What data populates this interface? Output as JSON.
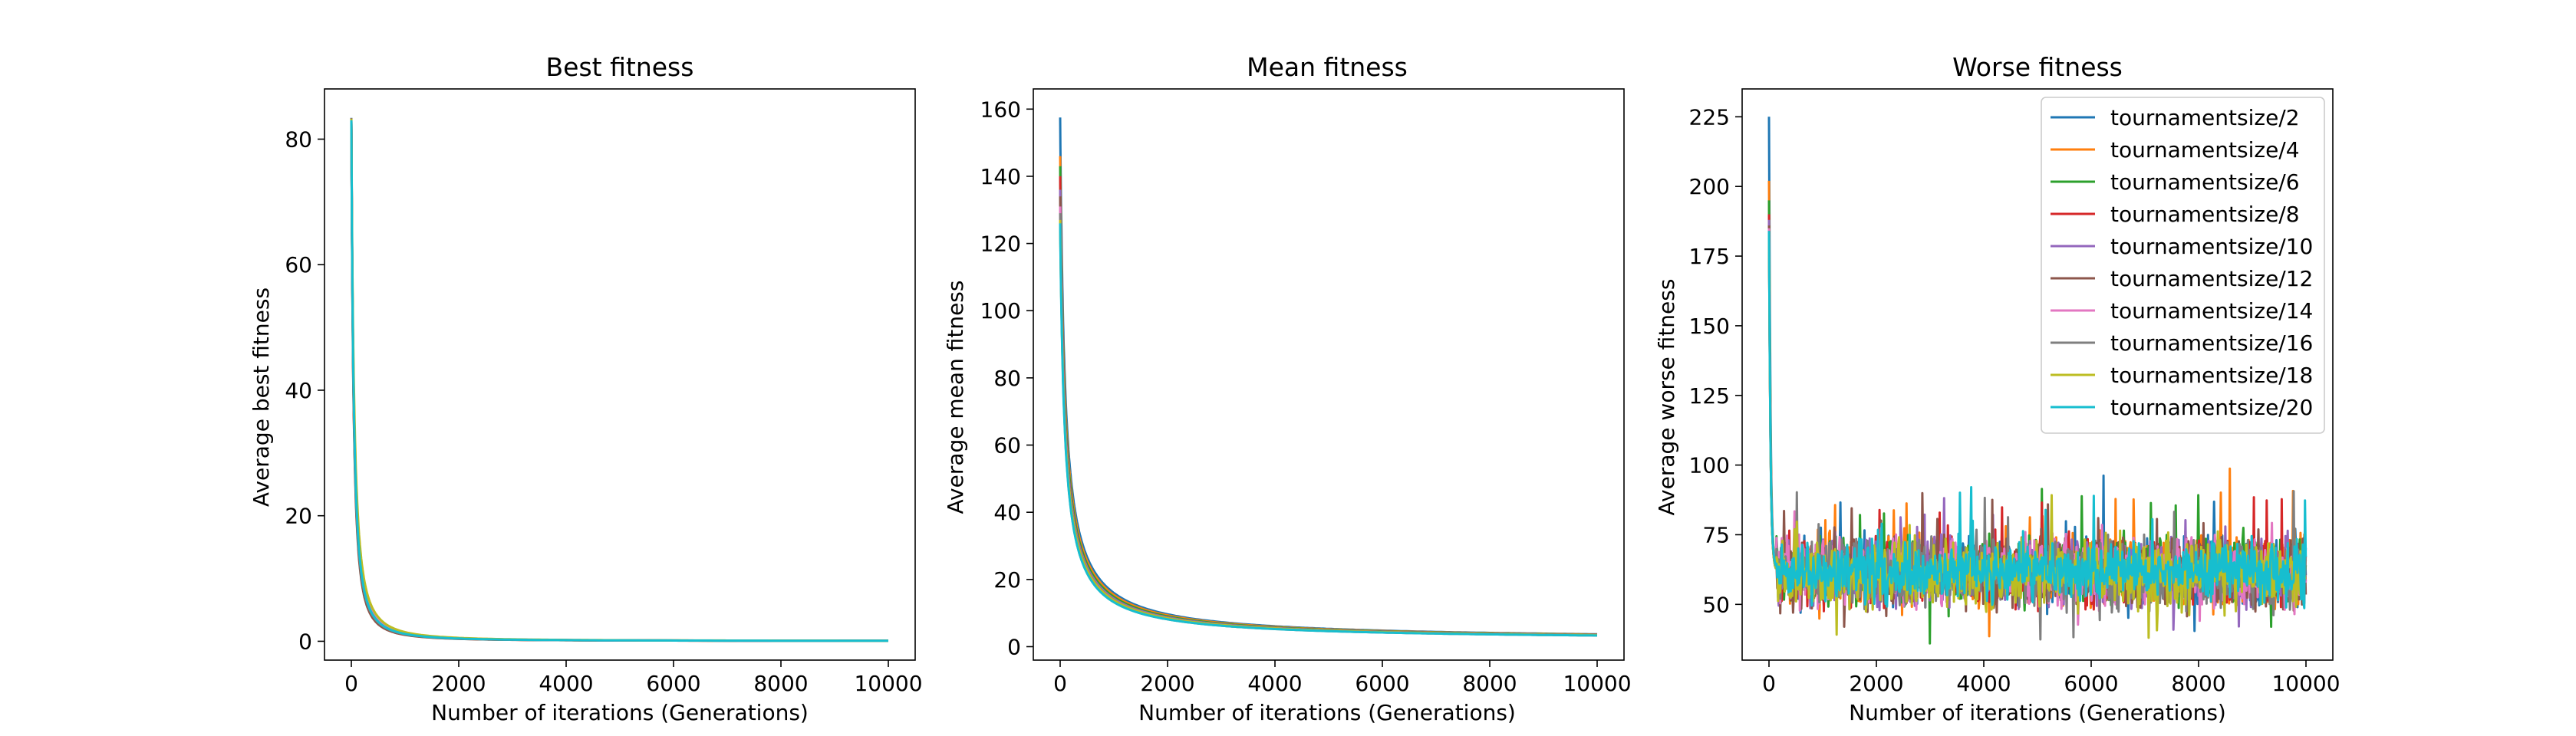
{
  "figure": {
    "colors": [
      "#1f77b4",
      "#ff7f0e",
      "#2ca02c",
      "#d62728",
      "#9467bd",
      "#8c564b",
      "#e377c2",
      "#7f7f7f",
      "#bcbd22",
      "#17becf"
    ]
  },
  "legend": {
    "placement": "upper-right of third panel",
    "entries": [
      "tournamentsize/2",
      "tournamentsize/4",
      "tournamentsize/6",
      "tournamentsize/8",
      "tournamentsize/10",
      "tournamentsize/12",
      "tournamentsize/14",
      "tournamentsize/16",
      "tournamentsize/18",
      "tournamentsize/20"
    ]
  },
  "chart_data": [
    {
      "type": "line",
      "title": "Best fitness",
      "xlabel": "Number of iterations (Generations)",
      "ylabel": "Average best fitness",
      "xlim": [
        -500,
        10500
      ],
      "ylim": [
        -3,
        88
      ],
      "xticks": [
        0,
        2000,
        4000,
        6000,
        8000,
        10000
      ],
      "yticks": [
        0,
        20,
        40,
        60,
        80
      ],
      "grid": false,
      "series": [
        {
          "name": "tournamentsize/2",
          "start": 83.4,
          "k": 75,
          "p": 1.6,
          "floor": 0.05,
          "noise": 0
        },
        {
          "name": "tournamentsize/4",
          "start": 83.3,
          "k": 70,
          "p": 1.6,
          "floor": 0.05,
          "noise": 0
        },
        {
          "name": "tournamentsize/6",
          "start": 83.2,
          "k": 72,
          "p": 1.6,
          "floor": 0.05,
          "noise": 0
        },
        {
          "name": "tournamentsize/8",
          "start": 83.0,
          "k": 68,
          "p": 1.6,
          "floor": 0.05,
          "noise": 0
        },
        {
          "name": "tournamentsize/10",
          "start": 83.1,
          "k": 74,
          "p": 1.6,
          "floor": 0.05,
          "noise": 0
        },
        {
          "name": "tournamentsize/12",
          "start": 82.8,
          "k": 66,
          "p": 1.6,
          "floor": 0.05,
          "noise": 0
        },
        {
          "name": "tournamentsize/14",
          "start": 83.0,
          "k": 78,
          "p": 1.6,
          "floor": 0.05,
          "noise": 0
        },
        {
          "name": "tournamentsize/16",
          "start": 82.9,
          "k": 71,
          "p": 1.6,
          "floor": 0.05,
          "noise": 0
        },
        {
          "name": "tournamentsize/18",
          "start": 83.2,
          "k": 85,
          "p": 1.6,
          "floor": 0.05,
          "noise": 0
        },
        {
          "name": "tournamentsize/20",
          "start": 83.0,
          "k": 73,
          "p": 1.6,
          "floor": 0.05,
          "noise": 0
        }
      ]
    },
    {
      "type": "line",
      "title": "Mean fitness",
      "xlabel": "Number of iterations (Generations)",
      "ylabel": "Average mean fitness",
      "xlim": [
        -500,
        10500
      ],
      "ylim": [
        -4,
        166
      ],
      "xticks": [
        0,
        2000,
        4000,
        6000,
        8000,
        10000
      ],
      "yticks": [
        0,
        20,
        40,
        60,
        80,
        100,
        120,
        140,
        160
      ],
      "grid": false,
      "series": [
        {
          "name": "tournamentsize/2",
          "start": 157.5,
          "k": 75,
          "p": 0.9,
          "floor": 1.8,
          "noise": 0
        },
        {
          "name": "tournamentsize/4",
          "start": 146,
          "k": 78,
          "p": 0.9,
          "floor": 1.8,
          "noise": 0
        },
        {
          "name": "tournamentsize/6",
          "start": 143,
          "k": 76,
          "p": 0.9,
          "floor": 1.8,
          "noise": 0
        },
        {
          "name": "tournamentsize/8",
          "start": 140,
          "k": 74,
          "p": 0.9,
          "floor": 1.8,
          "noise": 0
        },
        {
          "name": "tournamentsize/10",
          "start": 136,
          "k": 77,
          "p": 0.9,
          "floor": 1.8,
          "noise": 0
        },
        {
          "name": "tournamentsize/12",
          "start": 134,
          "k": 75,
          "p": 0.9,
          "floor": 1.8,
          "noise": 0
        },
        {
          "name": "tournamentsize/14",
          "start": 131,
          "k": 76,
          "p": 0.9,
          "floor": 1.8,
          "noise": 0
        },
        {
          "name": "tournamentsize/16",
          "start": 129,
          "k": 74,
          "p": 0.9,
          "floor": 1.8,
          "noise": 0
        },
        {
          "name": "tournamentsize/18",
          "start": 127,
          "k": 80,
          "p": 0.9,
          "floor": 1.8,
          "noise": 0
        },
        {
          "name": "tournamentsize/20",
          "start": 126,
          "k": 76,
          "p": 0.9,
          "floor": 1.8,
          "noise": 0
        }
      ]
    },
    {
      "type": "line",
      "title": "Worse fitness",
      "xlabel": "Number of iterations (Generations)",
      "ylabel": "Average worse fitness",
      "xlim": [
        -500,
        10500
      ],
      "ylim": [
        30,
        235
      ],
      "xticks": [
        0,
        2000,
        4000,
        6000,
        8000,
        10000
      ],
      "yticks": [
        50,
        75,
        100,
        125,
        150,
        175,
        200,
        225
      ],
      "grid": false,
      "series": [
        {
          "name": "tournamentsize/2",
          "start": 225,
          "base": 62,
          "noise": 9
        },
        {
          "name": "tournamentsize/4",
          "start": 202,
          "base": 63,
          "noise": 10
        },
        {
          "name": "tournamentsize/6",
          "start": 195,
          "base": 62,
          "noise": 9
        },
        {
          "name": "tournamentsize/8",
          "start": 190,
          "base": 61,
          "noise": 9
        },
        {
          "name": "tournamentsize/10",
          "start": 188,
          "base": 62,
          "noise": 9
        },
        {
          "name": "tournamentsize/12",
          "start": 186,
          "base": 61,
          "noise": 9
        },
        {
          "name": "tournamentsize/14",
          "start": 185,
          "base": 62,
          "noise": 9
        },
        {
          "name": "tournamentsize/16",
          "start": 184,
          "base": 61,
          "noise": 9
        },
        {
          "name": "tournamentsize/18",
          "start": 183,
          "base": 61,
          "noise": 9
        },
        {
          "name": "tournamentsize/20",
          "start": 184,
          "base": 62,
          "noise": 8
        }
      ]
    }
  ]
}
